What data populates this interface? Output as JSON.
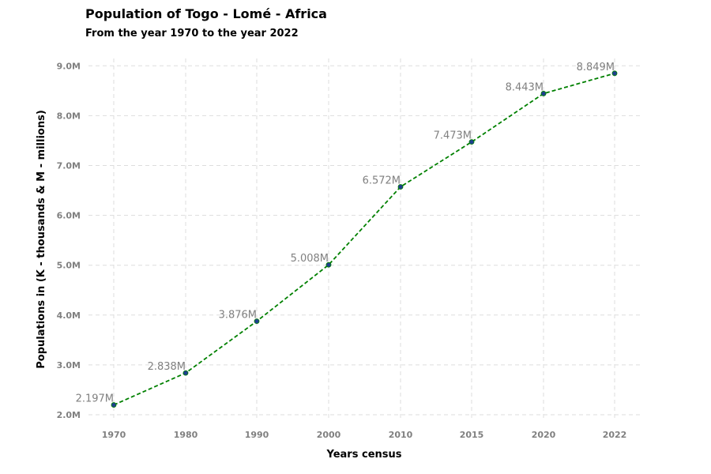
{
  "chart_data": {
    "type": "line",
    "title": "Population of Togo - Lomé - Africa",
    "subtitle": "From the year 1970 to the year 2022",
    "xlabel": "Years census",
    "ylabel": "Populations in (K - thousands & M - millions)",
    "categories": [
      "1970",
      "1980",
      "1990",
      "2000",
      "2010",
      "2015",
      "2020",
      "2022"
    ],
    "values": [
      2.197,
      2.838,
      3.876,
      5.008,
      6.572,
      7.473,
      8.443,
      8.849
    ],
    "data_labels": [
      "2.197M",
      "2.838M",
      "3.876M",
      "5.008M",
      "6.572M",
      "7.473M",
      "8.443M",
      "8.849M"
    ],
    "ylim": [
      2.0,
      9.0
    ],
    "yticks": [
      2.0,
      3.0,
      4.0,
      5.0,
      6.0,
      7.0,
      8.0,
      9.0
    ],
    "ytick_labels": [
      "2.0M",
      "3.0M",
      "4.0M",
      "5.0M",
      "6.0M",
      "7.0M",
      "8.0M",
      "9.0M"
    ],
    "grid": true,
    "line_style": "dashed",
    "colors": {
      "line": "#008000",
      "marker": "#1f3f8f",
      "grid": "#dddddd",
      "tick_text": "#808080",
      "label_text": "#808080"
    }
  }
}
